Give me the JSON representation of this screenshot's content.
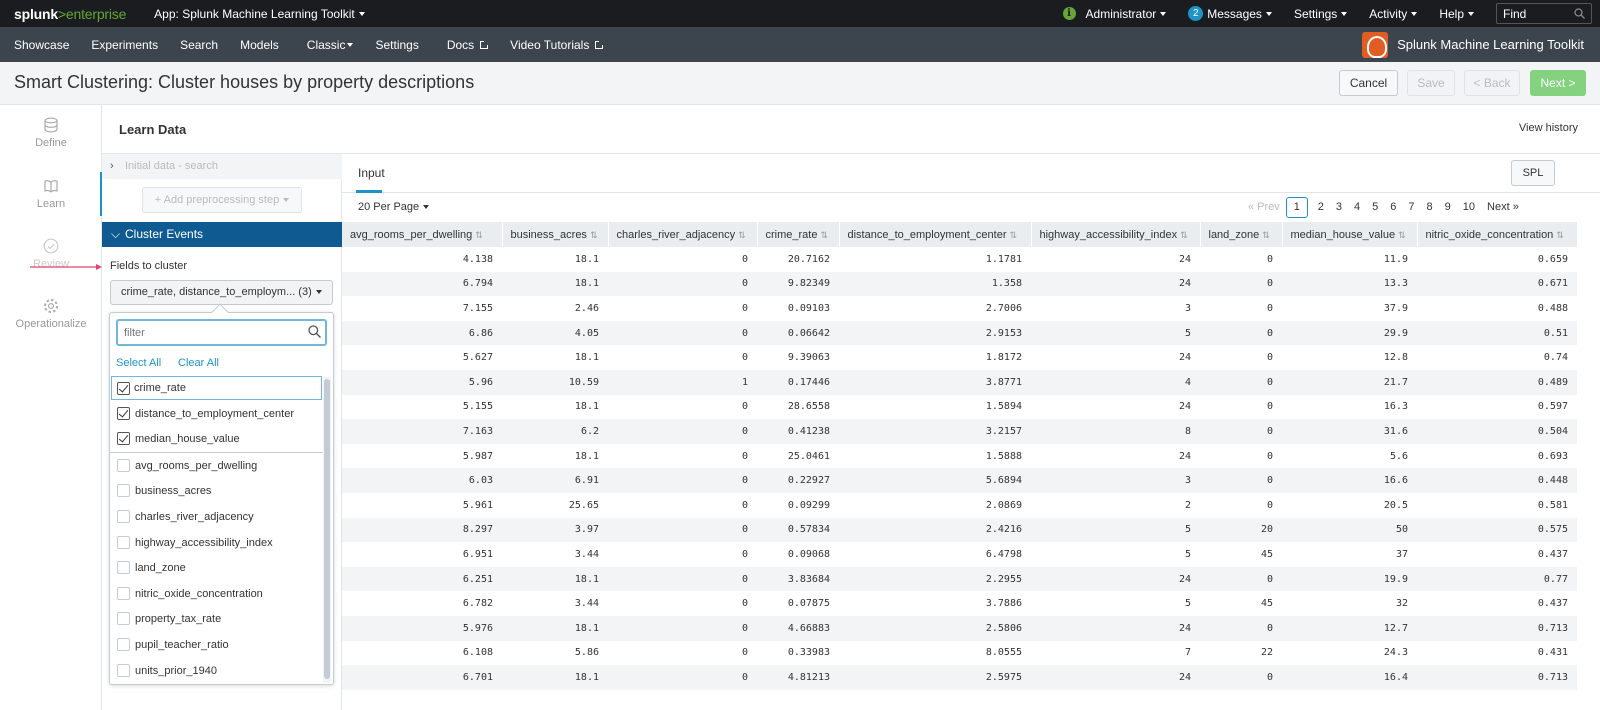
{
  "topbar": {
    "logo_main": "splunk",
    "logo_gt": ">",
    "logo_sub": "enterprise",
    "app_label": "App: Splunk Machine Learning Toolkit",
    "admin_label": "Administrator",
    "messages_count": "2",
    "messages_label": "Messages",
    "settings_label": "Settings",
    "activity_label": "Activity",
    "help_label": "Help",
    "find_placeholder": "Find"
  },
  "nav": {
    "items": [
      "Showcase",
      "Experiments",
      "Search",
      "Models",
      "Classic",
      "Settings",
      "Docs",
      "Video Tutorials"
    ],
    "brand": "Splunk Machine Learning Toolkit"
  },
  "header": {
    "title": "Smart Clustering: Cluster houses by property descriptions",
    "cancel": "Cancel",
    "save": "Save",
    "back": "< Back",
    "next": "Next >"
  },
  "steps": [
    "Define",
    "Learn",
    "Review",
    "Operationalize"
  ],
  "learn": {
    "title": "Learn Data",
    "view_history": "View history"
  },
  "config": {
    "initial_data": "Initial data - search",
    "add_step": "+ Add preprocessing step",
    "cluster_events": "Cluster Events",
    "fields_label": "Fields to cluster",
    "fields_value": "crime_rate, distance_to_employm... (3)",
    "filter_placeholder": "filter",
    "select_all": "Select All",
    "clear_all": "Clear All",
    "options": [
      {
        "label": "crime_rate",
        "checked": true
      },
      {
        "label": "distance_to_employment_center",
        "checked": true
      },
      {
        "label": "median_house_value",
        "checked": true
      },
      {
        "label": "avg_rooms_per_dwelling",
        "checked": false
      },
      {
        "label": "business_acres",
        "checked": false
      },
      {
        "label": "charles_river_adjacency",
        "checked": false
      },
      {
        "label": "highway_accessibility_index",
        "checked": false
      },
      {
        "label": "land_zone",
        "checked": false
      },
      {
        "label": "nitric_oxide_concentration",
        "checked": false
      },
      {
        "label": "property_tax_rate",
        "checked": false
      },
      {
        "label": "pupil_teacher_ratio",
        "checked": false
      },
      {
        "label": "units_prior_1940",
        "checked": false
      }
    ]
  },
  "data_panel": {
    "tab": "Input",
    "spl": "SPL",
    "per_page": "20 Per Page",
    "prev": "« Prev",
    "pages": [
      "1",
      "2",
      "3",
      "4",
      "5",
      "6",
      "7",
      "8",
      "9",
      "10"
    ],
    "current_page": "1",
    "next": "Next »"
  },
  "table": {
    "columns": [
      "avg_rooms_per_dwelling",
      "business_acres",
      "charles_river_adjacency",
      "crime_rate",
      "distance_to_employment_center",
      "highway_accessibility_index",
      "land_zone",
      "median_house_value",
      "nitric_oxide_concentration"
    ],
    "rows": [
      [
        "4.138",
        "18.1",
        "0",
        "20.7162",
        "1.1781",
        "24",
        "0",
        "11.9",
        "0.659"
      ],
      [
        "6.794",
        "18.1",
        "0",
        "9.82349",
        "1.358",
        "24",
        "0",
        "13.3",
        "0.671"
      ],
      [
        "7.155",
        "2.46",
        "0",
        "0.09103",
        "2.7006",
        "3",
        "0",
        "37.9",
        "0.488"
      ],
      [
        "6.86",
        "4.05",
        "0",
        "0.06642",
        "2.9153",
        "5",
        "0",
        "29.9",
        "0.51"
      ],
      [
        "5.627",
        "18.1",
        "0",
        "9.39063",
        "1.8172",
        "24",
        "0",
        "12.8",
        "0.74"
      ],
      [
        "5.96",
        "10.59",
        "1",
        "0.17446",
        "3.8771",
        "4",
        "0",
        "21.7",
        "0.489"
      ],
      [
        "5.155",
        "18.1",
        "0",
        "28.6558",
        "1.5894",
        "24",
        "0",
        "16.3",
        "0.597"
      ],
      [
        "7.163",
        "6.2",
        "0",
        "0.41238",
        "3.2157",
        "8",
        "0",
        "31.6",
        "0.504"
      ],
      [
        "5.987",
        "18.1",
        "0",
        "25.0461",
        "1.5888",
        "24",
        "0",
        "5.6",
        "0.693"
      ],
      [
        "6.03",
        "6.91",
        "0",
        "0.22927",
        "5.6894",
        "3",
        "0",
        "16.6",
        "0.448"
      ],
      [
        "5.961",
        "25.65",
        "0",
        "0.09299",
        "2.0869",
        "2",
        "0",
        "20.5",
        "0.581"
      ],
      [
        "8.297",
        "3.97",
        "0",
        "0.57834",
        "2.4216",
        "5",
        "20",
        "50",
        "0.575"
      ],
      [
        "6.951",
        "3.44",
        "0",
        "0.09068",
        "6.4798",
        "5",
        "45",
        "37",
        "0.437"
      ],
      [
        "6.251",
        "18.1",
        "0",
        "3.83684",
        "2.2955",
        "24",
        "0",
        "19.9",
        "0.77"
      ],
      [
        "6.782",
        "3.44",
        "0",
        "0.07875",
        "3.7886",
        "5",
        "45",
        "32",
        "0.437"
      ],
      [
        "5.976",
        "18.1",
        "0",
        "4.66883",
        "2.5806",
        "24",
        "0",
        "12.7",
        "0.713"
      ],
      [
        "6.108",
        "5.86",
        "0",
        "0.33983",
        "8.0555",
        "7",
        "22",
        "24.3",
        "0.431"
      ],
      [
        "6.701",
        "18.1",
        "0",
        "4.81213",
        "2.5975",
        "24",
        "0",
        "16.4",
        "0.713"
      ]
    ]
  },
  "colors": {
    "accent": "#1e93c6",
    "brand_green": "#65a637",
    "cluster_header": "#0e5a91",
    "next_button": "#84d27f",
    "annotation_arrow": "#e0456e"
  }
}
